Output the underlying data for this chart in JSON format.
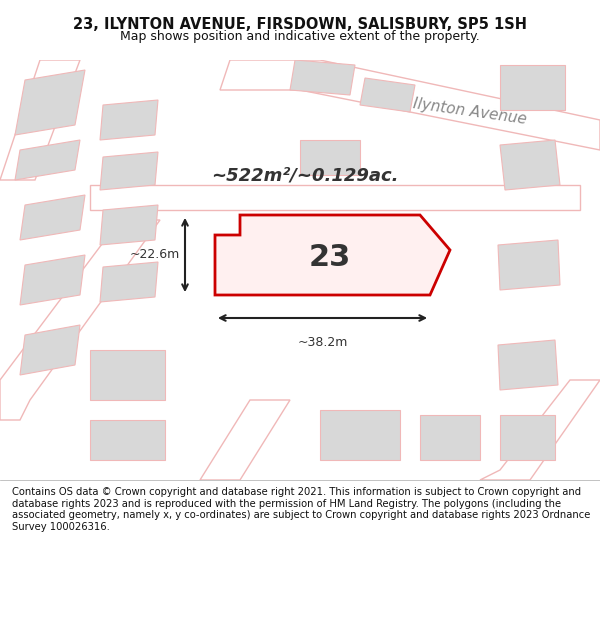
{
  "title": "23, ILYNTON AVENUE, FIRSDOWN, SALISBURY, SP5 1SH",
  "subtitle": "Map shows position and indicative extent of the property.",
  "street_label": "Ilynton Avenue",
  "area_label": "~522m²/~0.129ac.",
  "lot_number": "23",
  "dim_width": "~38.2m",
  "dim_height": "~22.6m",
  "footer": "Contains OS data © Crown copyright and database right 2021. This information is subject to Crown copyright and database rights 2023 and is reproduced with the permission of HM Land Registry. The polygons (including the associated geometry, namely x, y co-ordinates) are subject to Crown copyright and database rights 2023 Ordnance Survey 100026316.",
  "bg_color": "#f5f0ee",
  "map_bg": "#f5f0ee",
  "road_color": "#ffffff",
  "building_color": "#d8d8d8",
  "building_fill": "#d8d8d8",
  "plot_outline_color": "#cc0000",
  "plot_fill_color": "#f5f0ee",
  "road_outline_color": "#f0b8b8",
  "dim_line_color": "#222222",
  "title_color": "#111111",
  "footer_color": "#111111",
  "street_label_color": "#888888"
}
